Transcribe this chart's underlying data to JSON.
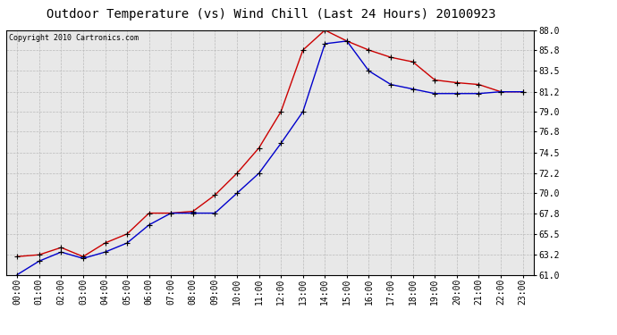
{
  "title": "Outdoor Temperature (vs) Wind Chill (Last 24 Hours) 20100923",
  "copyright": "Copyright 2010 Cartronics.com",
  "hours": [
    "00:00",
    "01:00",
    "02:00",
    "03:00",
    "04:00",
    "05:00",
    "06:00",
    "07:00",
    "08:00",
    "09:00",
    "10:00",
    "11:00",
    "12:00",
    "13:00",
    "14:00",
    "15:00",
    "16:00",
    "17:00",
    "18:00",
    "19:00",
    "20:00",
    "21:00",
    "22:00",
    "23:00"
  ],
  "outdoor_temp": [
    63.0,
    63.2,
    64.0,
    63.0,
    64.5,
    65.5,
    67.8,
    67.8,
    68.0,
    69.8,
    72.2,
    75.0,
    79.0,
    85.8,
    88.0,
    86.8,
    85.8,
    85.0,
    84.5,
    82.5,
    82.2,
    82.0,
    81.2,
    81.2
  ],
  "wind_chill": [
    61.0,
    62.5,
    63.5,
    62.8,
    63.5,
    64.5,
    66.5,
    67.8,
    67.8,
    67.8,
    70.0,
    72.2,
    75.5,
    79.0,
    86.5,
    86.8,
    83.5,
    82.0,
    81.5,
    81.0,
    81.0,
    81.0,
    81.2,
    81.2
  ],
  "temp_color": "#cc0000",
  "wind_chill_color": "#0000cc",
  "marker": "+",
  "marker_color": "#000000",
  "ylim": [
    61.0,
    88.0
  ],
  "yticks": [
    61.0,
    63.2,
    65.5,
    67.8,
    70.0,
    72.2,
    74.5,
    76.8,
    79.0,
    81.2,
    83.5,
    85.8,
    88.0
  ],
  "bg_color": "#ffffff",
  "plot_bg_color": "#e8e8e8",
  "grid_color": "#bbbbbb",
  "title_fontsize": 10,
  "copyright_fontsize": 6,
  "tick_fontsize": 7,
  "linewidth": 1.0,
  "markersize": 4
}
